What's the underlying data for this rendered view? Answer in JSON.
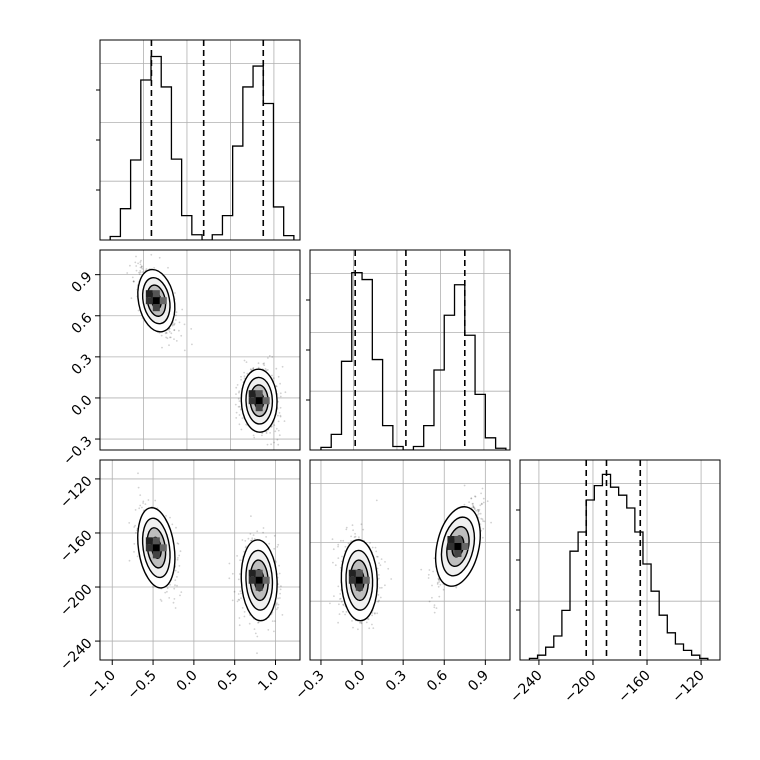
{
  "figure": {
    "type": "corner-plot",
    "background": "#ffffff",
    "ink": "#000000",
    "grid_color": "#b0b0b0"
  },
  "chart_data": [
    {
      "type": "histogram",
      "panel": "row0-col0",
      "x_range": [
        -1.15,
        1.3
      ],
      "y_range": [
        0,
        0.23
      ],
      "grid": true,
      "bin_edges": [
        -1.025,
        -0.9,
        -0.775,
        -0.65,
        -0.525,
        -0.4,
        -0.275,
        -0.15,
        -0.025,
        0.1,
        0.225,
        0.35,
        0.475,
        0.6,
        0.725,
        0.85,
        0.975,
        1.1,
        1.225
      ],
      "counts": [
        0.004,
        0.036,
        0.092,
        0.184,
        0.211,
        0.176,
        0.093,
        0.028,
        0.006,
        0.0,
        0.006,
        0.028,
        0.108,
        0.176,
        0.2,
        0.157,
        0.038,
        0.005
      ],
      "quantile_lines": [
        -0.52,
        0.12,
        0.85
      ]
    },
    {
      "type": "scatter-density",
      "panel": "row1-col0",
      "x_range": [
        -1.15,
        1.3
      ],
      "y_range": [
        -0.38,
        1.08
      ],
      "grid": true,
      "y_ticks": [
        -0.3,
        0.0,
        0.3,
        0.6,
        0.9
      ],
      "y_tick_labels": [
        "−0.3",
        "0.0",
        "0.3",
        "0.6",
        "0.9"
      ],
      "modes": [
        {
          "center": [
            -0.46,
            0.71
          ],
          "spread": [
            0.1,
            0.1
          ],
          "tilt": 0.6
        },
        {
          "center": [
            0.8,
            -0.02
          ],
          "spread": [
            0.1,
            0.1
          ],
          "tilt": 0.1
        }
      ]
    },
    {
      "type": "histogram",
      "panel": "row1-col1",
      "x_range": [
        -0.38,
        1.08
      ],
      "y_range": [
        0,
        0.23
      ],
      "grid": true,
      "bin_edges": [
        -0.3,
        -0.225,
        -0.15,
        -0.075,
        0.0,
        0.075,
        0.15,
        0.225,
        0.3,
        0.375,
        0.45,
        0.525,
        0.6,
        0.675,
        0.75,
        0.825,
        0.9,
        0.975,
        1.05
      ],
      "counts": [
        0.003,
        0.018,
        0.102,
        0.204,
        0.196,
        0.104,
        0.028,
        0.004,
        0.0,
        0.004,
        0.028,
        0.092,
        0.155,
        0.19,
        0.132,
        0.064,
        0.014,
        0.002
      ],
      "quantile_lines": [
        -0.05,
        0.32,
        0.75
      ]
    },
    {
      "type": "scatter-density",
      "panel": "row2-col0",
      "x_range": [
        -1.15,
        1.3
      ],
      "y_range": [
        -254,
        -106
      ],
      "grid": true,
      "y_ticks": [
        -240,
        -200,
        -160,
        -120
      ],
      "y_tick_labels": [
        "−240",
        "−200",
        "−160",
        "−120"
      ],
      "x_ticks": [
        -1.0,
        -0.5,
        0.0,
        0.5,
        1.0
      ],
      "x_tick_labels": [
        "−1.0",
        "−0.5",
        "0.0",
        "0.5",
        "1.0"
      ],
      "modes": [
        {
          "center": [
            -0.46,
            -171
          ],
          "spread": [
            0.1,
            13
          ],
          "tilt": 0.45
        },
        {
          "center": [
            0.8,
            -195
          ],
          "spread": [
            0.1,
            13
          ],
          "tilt": 0.15
        }
      ]
    },
    {
      "type": "scatter-density",
      "panel": "row2-col1",
      "x_range": [
        -0.38,
        1.08
      ],
      "y_range": [
        -254,
        -106
      ],
      "grid": true,
      "x_ticks": [
        -0.3,
        0.0,
        0.3,
        0.6,
        0.9
      ],
      "x_tick_labels": [
        "−0.3",
        "0.0",
        "0.3",
        "0.6",
        "0.9"
      ],
      "modes": [
        {
          "center": [
            -0.02,
            -195
          ],
          "spread": [
            0.06,
            13
          ],
          "tilt": 0.1
        },
        {
          "center": [
            0.7,
            -170
          ],
          "spread": [
            0.07,
            13
          ],
          "tilt": -0.7
        }
      ]
    },
    {
      "type": "histogram",
      "panel": "row2-col2",
      "x_range": [
        -254,
        -106
      ],
      "y_range": [
        0,
        0.125
      ],
      "grid": true,
      "x_ticks": [
        -240,
        -200,
        -160,
        -120
      ],
      "x_tick_labels": [
        "−240",
        "−200",
        "−160",
        "−120"
      ],
      "bin_edges": [
        -247,
        -241,
        -235,
        -229,
        -223,
        -217,
        -211,
        -205,
        -199,
        -193,
        -187,
        -181,
        -175,
        -169,
        -163,
        -157,
        -151,
        -145,
        -139,
        -133,
        -127,
        -121,
        -115
      ],
      "counts": [
        0.001,
        0.003,
        0.008,
        0.015,
        0.031,
        0.068,
        0.08,
        0.1,
        0.109,
        0.116,
        0.108,
        0.103,
        0.095,
        0.08,
        0.06,
        0.043,
        0.028,
        0.017,
        0.01,
        0.006,
        0.003,
        0.001
      ],
      "quantile_lines": [
        -205,
        -190,
        -165
      ]
    }
  ]
}
